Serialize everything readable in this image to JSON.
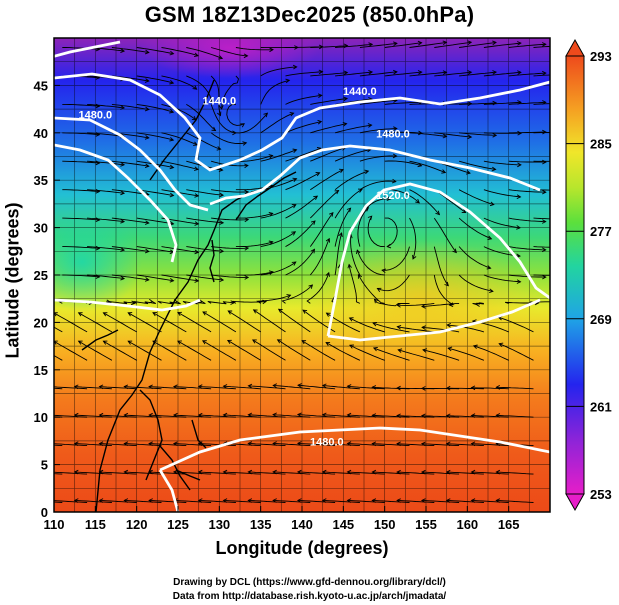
{
  "title": "GSM 18Z13Dec2025 (850.0hPa)",
  "x_axis_label": "Longitude (degrees)",
  "y_axis_label": "Latitude  (degrees)",
  "credit_line1": "Drawing by DCL (https://www.gfd-dennou.org/library/dcl/)",
  "credit_line2": "Data from http://database.rish.kyoto-u.ac.jp/arch/jmadata/",
  "chart_data": {
    "type": "heatmap",
    "x_ticks": [
      "110",
      "115",
      "120",
      "125",
      "130",
      "135",
      "140",
      "145",
      "150",
      "155",
      "160",
      "165"
    ],
    "y_ticks": [
      "0",
      "5",
      "10",
      "15",
      "20",
      "25",
      "30",
      "35",
      "40",
      "45"
    ],
    "xlim": [
      110,
      170
    ],
    "ylim": [
      0,
      50
    ],
    "grid": true,
    "colorbar": {
      "min": 253,
      "max": 293,
      "ticks": [
        "253",
        "261",
        "269",
        "277",
        "285",
        "293"
      ]
    },
    "contour_labels": [
      {
        "text": "1440.0",
        "lon": 130,
        "lat": 43
      },
      {
        "text": "1480.0",
        "lon": 115,
        "lat": 41.5
      },
      {
        "text": "1440.0",
        "lon": 147,
        "lat": 44
      },
      {
        "text": "1480.0",
        "lon": 151,
        "lat": 39.5
      },
      {
        "text": "1520.0",
        "lon": 151,
        "lat": 33
      },
      {
        "text": "1480.0",
        "lon": 143,
        "lat": 7
      }
    ]
  }
}
